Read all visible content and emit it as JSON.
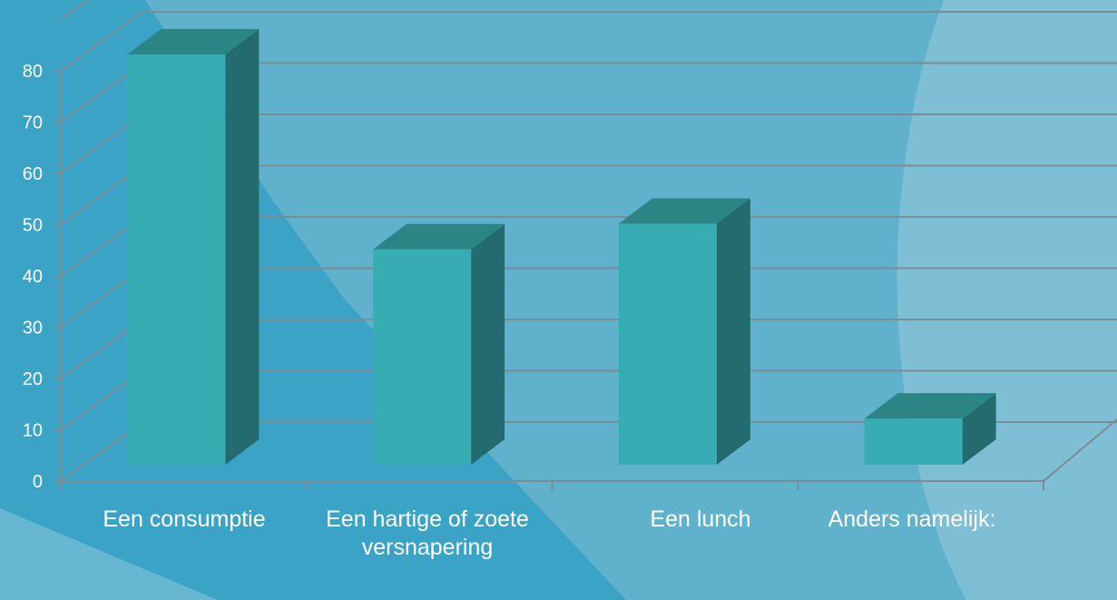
{
  "chart_data": {
    "type": "bar",
    "style": "3d-column",
    "categories": [
      "Een consumptie",
      "Een hartige of zoete versnapering",
      "Een lunch",
      "Anders namelijk:"
    ],
    "values": [
      80,
      42,
      47,
      9
    ],
    "ylim": [
      0,
      80
    ],
    "yticks": [
      "0",
      "10",
      "20",
      "30",
      "40",
      "50",
      "60",
      "70",
      "80"
    ],
    "grid": true,
    "legend": "none",
    "title": "",
    "xlabel": "",
    "ylabel": ""
  },
  "colors": {
    "background": "#3aa3c6",
    "background_light": "#60b2cc",
    "bar_front": "#38acb3",
    "bar_top": "#2b8584",
    "bar_side": "#236b6e",
    "gridline": "#7b8c94",
    "text": "#ffffff"
  }
}
